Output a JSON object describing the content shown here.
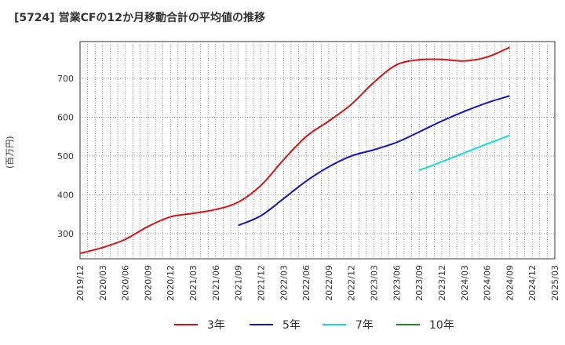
{
  "title": "[5724]  営業CFの12か月移動合計の平均値の推移",
  "chart_data": {
    "type": "line",
    "title": "[5724]  営業CFの12か月移動合計の平均値の推移",
    "ylabel": "(百万円)",
    "xlabel": "",
    "ylim": [
      235,
      795
    ],
    "y_ticks": [
      300,
      400,
      500,
      600,
      700
    ],
    "x_ticks": [
      "2019/12",
      "2020/03",
      "2020/06",
      "2020/09",
      "2020/12",
      "2021/03",
      "2021/06",
      "2021/09",
      "2021/12",
      "2022/03",
      "2022/06",
      "2022/09",
      "2022/12",
      "2023/03",
      "2023/06",
      "2023/09",
      "2023/12",
      "2024/03",
      "2024/06",
      "2024/09",
      "2024/12",
      "2025/03"
    ],
    "grid": true,
    "legend_position": "bottom",
    "series": [
      {
        "name": "3年",
        "color": "#dd1111",
        "x": [
          "2019/12",
          "2020/03",
          "2020/06",
          "2020/09",
          "2020/12",
          "2021/03",
          "2021/06",
          "2021/09",
          "2021/12",
          "2022/03",
          "2022/06",
          "2022/09",
          "2022/12",
          "2023/03",
          "2023/06",
          "2023/09",
          "2023/12",
          "2024/03",
          "2024/06",
          "2024/09"
        ],
        "values": [
          249,
          264,
          285,
          318,
          343,
          352,
          362,
          381,
          424,
          490,
          550,
          590,
          633,
          690,
          735,
          748,
          749,
          745,
          755,
          780
        ]
      },
      {
        "name": "5年",
        "color": "#1111cc",
        "x": [
          "2021/09",
          "2021/12",
          "2022/03",
          "2022/06",
          "2022/09",
          "2022/12",
          "2023/03",
          "2023/06",
          "2023/09",
          "2023/12",
          "2024/03",
          "2024/06",
          "2024/09"
        ],
        "values": [
          321,
          346,
          390,
          435,
          472,
          500,
          516,
          535,
          562,
          590,
          615,
          637,
          655
        ]
      },
      {
        "name": "7年",
        "color": "#11dddd",
        "x": [
          "2023/09",
          "2023/12",
          "2024/03",
          "2024/06",
          "2024/09"
        ],
        "values": [
          463,
          485,
          508,
          531,
          553
        ]
      },
      {
        "name": "10年",
        "color": "#228822",
        "x": [],
        "values": []
      }
    ]
  }
}
